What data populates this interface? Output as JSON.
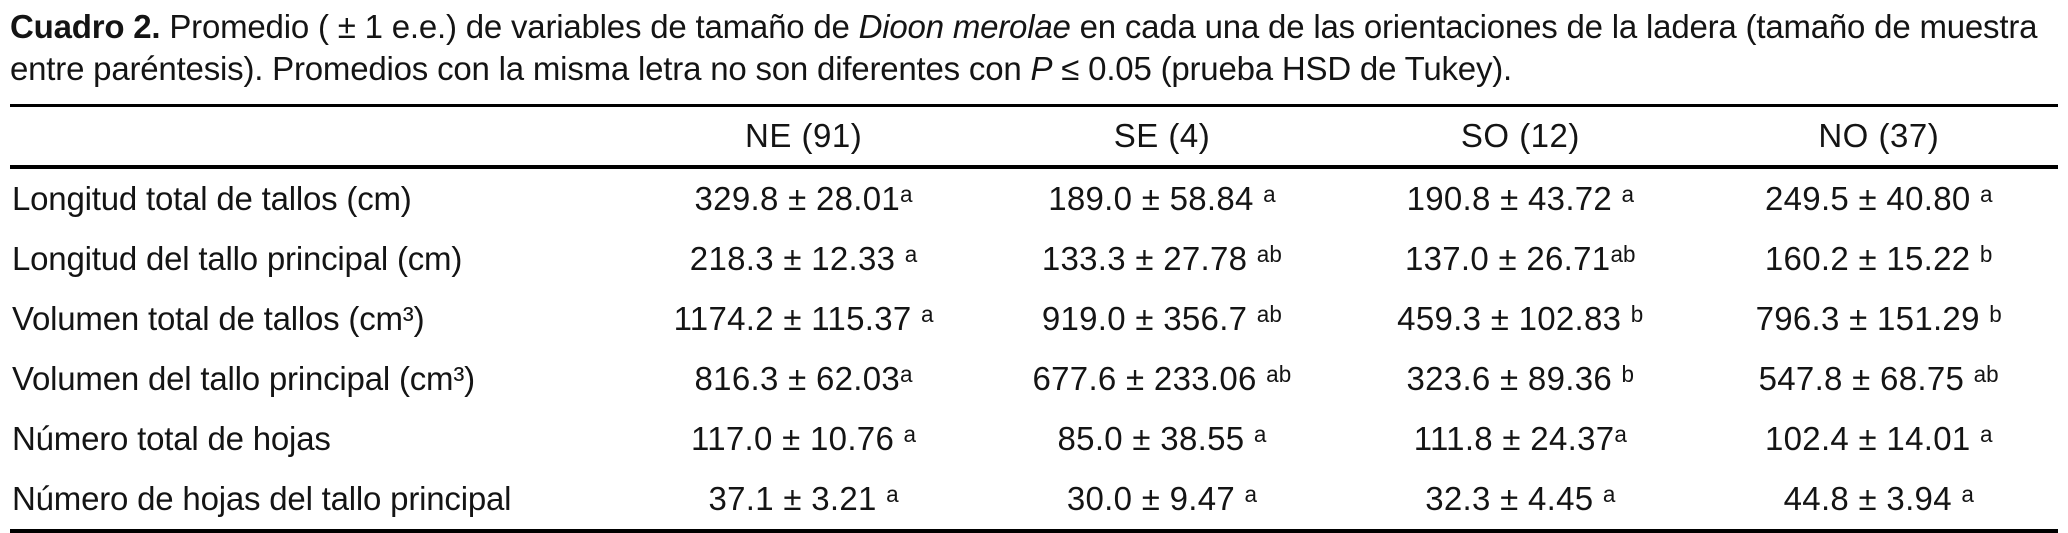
{
  "caption": {
    "label": "Cuadro 2.",
    "text_before_species": " Promedio ( ± 1 e.e.) de variables de tamaño de ",
    "species": "Dioon merolae",
    "text_after_species": " en cada una de las orientaciones de la ladera (tamaño de muestra entre paréntesis). Promedios con la misma letra no son diferentes con ",
    "p_symbol": "P",
    "text_end": " ≤ 0.05 (prueba HSD de Tukey)."
  },
  "table": {
    "columns": {
      "label": "",
      "ne": "NE (91)",
      "se": "SE (4)",
      "so": "SO (12)",
      "no": "NO (37)"
    },
    "rows": [
      {
        "label": "Longitud total de tallos (cm)",
        "values": [
          "329.8 ± 28.01ᵃ",
          "189.0 ± 58.84 ᵃ",
          "190.8 ± 43.72 ᵃ",
          "249.5 ± 40.80 ᵃ"
        ]
      },
      {
        "label": "Longitud del tallo principal (cm)",
        "values": [
          "218.3 ± 12.33 ᵃ",
          "133.3 ± 27.78 ᵃᵇ",
          "137.0 ± 26.71ᵃᵇ",
          "160.2 ± 15.22 ᵇ"
        ]
      },
      {
        "label": "Volumen total de tallos (cm³)",
        "values": [
          "1174.2 ± 115.37 ᵃ",
          "919.0 ± 356.7 ᵃᵇ",
          "459.3 ± 102.83 ᵇ",
          "796.3 ± 151.29 ᵇ"
        ]
      },
      {
        "label": "Volumen del tallo principal (cm³)",
        "values": [
          "816.3 ± 62.03ᵃ",
          "677.6 ± 233.06 ᵃᵇ",
          "323.6 ± 89.36 ᵇ",
          "547.8 ± 68.75 ᵃᵇ"
        ]
      },
      {
        "label": "Número total de hojas",
        "values": [
          "117.0 ± 10.76 ᵃ",
          "85.0 ± 38.55 ᵃ",
          "111.8 ± 24.37ᵃ",
          "102.4 ± 14.01 ᵃ"
        ]
      },
      {
        "label": "Número de hojas del tallo principal",
        "values": [
          "37.1 ± 3.21 ᵃ",
          "30.0 ± 9.47 ᵃ",
          "32.3 ± 4.45 ᵃ",
          "44.8 ± 3.94 ᵃ"
        ]
      }
    ]
  }
}
